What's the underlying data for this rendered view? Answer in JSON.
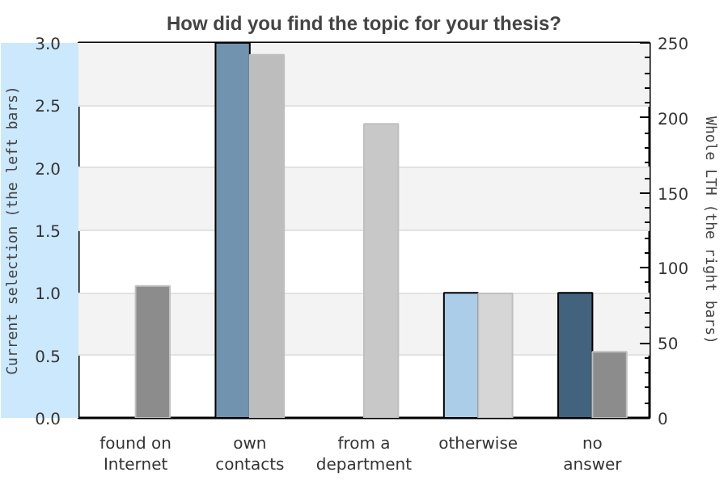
{
  "chart_data": {
    "type": "bar",
    "title": "How did you find the topic for your thesis?",
    "categories": [
      "found on Internet",
      "own contacts",
      "from a department",
      "otherwise",
      "no answer"
    ],
    "ylabel": "Current selection (the left bars)",
    "y2label": "Whole LTH (the right bars)",
    "series": [
      {
        "colors": [
          "#7193b0",
          "#7193b0",
          "#7193b0",
          "#abcde8",
          "#42627e"
        ],
        "values": [
          0,
          3,
          0,
          1,
          1
        ]
      },
      {
        "axis": "y2",
        "colors": [
          "#8c8c8c",
          "#bdbdbd",
          "#c8c8c8",
          "#d6d6d6",
          "#8c8c8c"
        ],
        "values": [
          88,
          242,
          196,
          83,
          44
        ]
      }
    ],
    "ylim": [
      0,
      3
    ],
    "yticks": [
      {
        "value": 0,
        "label": "0.0"
      },
      {
        "value": 0.5,
        "label": "0.5"
      },
      {
        "value": 1,
        "label": "1.0"
      },
      {
        "value": 1.5,
        "label": "1.5"
      },
      {
        "value": 2,
        "label": "2.0"
      },
      {
        "value": 2.5,
        "label": "2.5"
      },
      {
        "value": 3,
        "label": "3.0"
      }
    ],
    "y2lim": [
      0,
      250
    ],
    "y2ticks": [
      0,
      50,
      100,
      150,
      200,
      250
    ],
    "grid": "y"
  }
}
